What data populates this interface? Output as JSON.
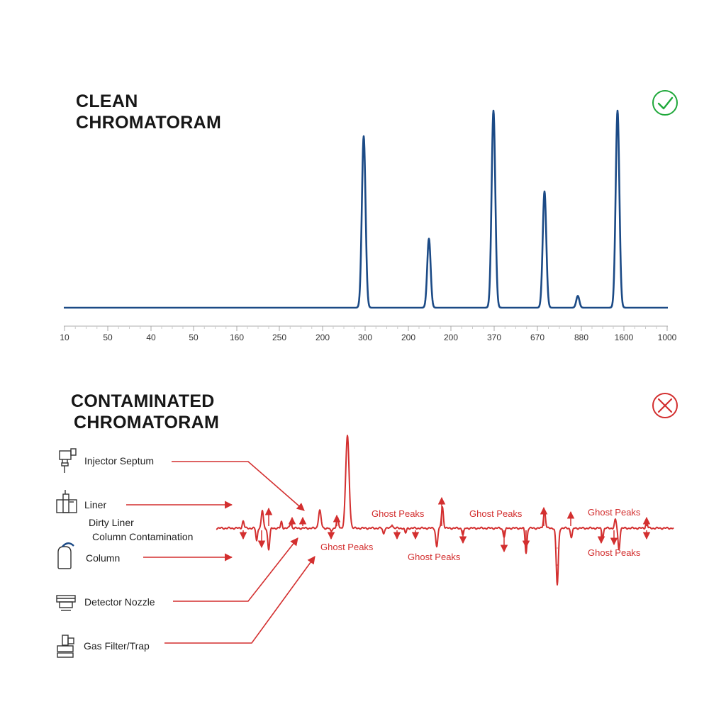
{
  "panels": {
    "clean": {
      "title_line1": "CLEAN",
      "title_line2": "CHROMATORAM",
      "status_icon": "check-circle-icon",
      "status_color": "#1fa83a"
    },
    "contaminated": {
      "title_line1": "CONTAMINATED",
      "title_line2": "CHROMATORAM",
      "status_icon": "x-circle-icon",
      "status_color": "#d32f2f"
    }
  },
  "chart_data": [
    {
      "type": "line",
      "title": "CLEAN CHROMATORAM",
      "color": "#1b4a86",
      "baseline": 0,
      "ylim": [
        0,
        100
      ],
      "x_tick_labels": [
        "10",
        "50",
        "40",
        "50",
        "160",
        "250",
        "200",
        "300",
        "200",
        "200",
        "370",
        "670",
        "880",
        "1600",
        "1000"
      ],
      "peaks": [
        {
          "x": 300,
          "height": 87
        },
        {
          "x": 200,
          "height": 35
        },
        {
          "x": 370,
          "height": 100
        },
        {
          "x": 670,
          "height": 59
        },
        {
          "x": 880,
          "height": 6
        },
        {
          "x": 1600,
          "height": 100
        }
      ]
    },
    {
      "type": "line",
      "title": "CONTAMINATED CHROMATORAM",
      "color": "#d32f2f",
      "baseline": 0,
      "ylim": [
        -60,
        130
      ],
      "main_peak": {
        "height": 130
      },
      "ghost_peaks": [
        {
          "height": 10
        },
        {
          "height": -18
        },
        {
          "height": 25
        },
        {
          "height": -30
        },
        {
          "height": 9
        },
        {
          "height": 7
        },
        {
          "height": 25
        },
        {
          "height": -5
        },
        {
          "height": 14
        },
        {
          "height": -8
        },
        {
          "height": 5
        },
        {
          "height": -7
        },
        {
          "height": -26
        },
        {
          "height": -10
        },
        {
          "height": 30
        },
        {
          "height": -12
        },
        {
          "height": -35
        },
        {
          "height": -28
        },
        {
          "height": 25
        },
        {
          "height": -13
        },
        {
          "height": -52
        },
        {
          "height": 12
        },
        {
          "height": -13
        },
        {
          "height": -30
        },
        {
          "height": 9
        }
      ],
      "ghost_labels": [
        "Ghost Peaks",
        "Ghost Peaks",
        "Ghost Peaks",
        "Ghost Peaks",
        "Ghost Peaks",
        "Ghost Peaks"
      ],
      "sources": [
        {
          "label": "Injector Septum",
          "icon": "injector-septum-icon"
        },
        {
          "label": "Liner",
          "icon": "liner-icon"
        },
        {
          "label": "Dirty Liner",
          "icon": ""
        },
        {
          "label": "Column Contamination",
          "icon": ""
        },
        {
          "label": "Column",
          "icon": "column-icon"
        },
        {
          "label": "Detector Nozzle",
          "icon": "detector-nozzle-icon"
        },
        {
          "label": "Gas Filter/Trap",
          "icon": "gas-filter-icon"
        }
      ]
    }
  ]
}
